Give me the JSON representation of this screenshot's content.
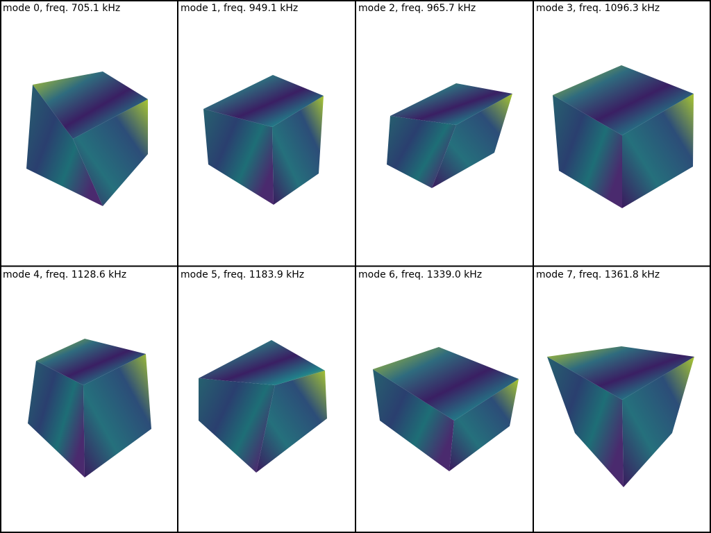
{
  "panels": [
    {
      "title": "mode 0, freq. 705.1 kHz"
    },
    {
      "title": "mode 1, freq. 949.1 kHz"
    },
    {
      "title": "mode 2, freq. 965.7 kHz"
    },
    {
      "title": "mode 3, freq. 1096.3 kHz"
    },
    {
      "title": "mode 4, freq. 1128.6 kHz"
    },
    {
      "title": "mode 5, freq. 1183.9 kHz"
    },
    {
      "title": "mode 6, freq. 1339.0 kHz"
    },
    {
      "title": "mode 7, freq. 1361.8 kHz"
    }
  ]
}
